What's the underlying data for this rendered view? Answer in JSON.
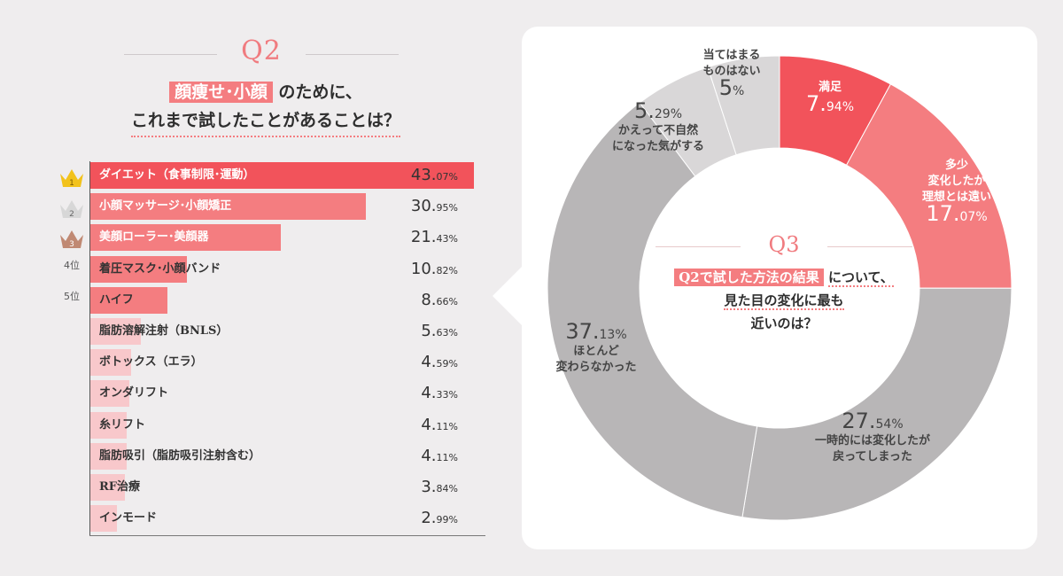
{
  "q2": {
    "label": "Q2",
    "title_highlight": "顔痩せ･小顔",
    "title_rest": "のために、",
    "title_line2": "これまで試したことがあることは？"
  },
  "q3": {
    "label": "Q3",
    "title_highlight": "Q2で試した方法の結果",
    "title_rest": "について、",
    "title_line2": "見た目の変化に最も",
    "title_line3": "近いのは？"
  },
  "ranks": [
    "1",
    "2",
    "3",
    "4位",
    "5位"
  ],
  "colors": {
    "accent": "#f2535b",
    "bar_strong": "#f2535b",
    "bar_mid": "#f47d80",
    "bar_light": "#f8c8cb",
    "pie_red": "#f2535b",
    "pie_pink": "#f47d80",
    "pie_gray": "#b8b6b7",
    "pie_lightgray": "#d9d7d8",
    "gold": "#f2c21b",
    "silver": "#d7d7d7",
    "bronze": "#c08973"
  },
  "chart_data": [
    {
      "type": "bar",
      "orientation": "horizontal",
      "categories": [
        "ダイエット（食事制限･運動）",
        "小顔マッサージ･小顔矯正",
        "美顔ローラー･美顔器",
        "着圧マスク･小顔バンド",
        "ハイフ",
        "脂肪溶解注射（BNLS）",
        "ボトックス（エラ）",
        "オンダリフト",
        "糸リフト",
        "脂肪吸引（脂肪吸引注射含む）",
        "RF治療",
        "インモード"
      ],
      "values": [
        43.07,
        30.95,
        21.43,
        10.82,
        8.66,
        5.63,
        4.59,
        4.33,
        4.11,
        4.11,
        3.84,
        2.99
      ],
      "unit": "%",
      "xlim": [
        0,
        43.07
      ]
    },
    {
      "type": "pie",
      "style": "donut",
      "unit": "%",
      "slices": [
        {
          "label": "満足",
          "value": 7.94
        },
        {
          "label": "多少変化したが理想とは遠い",
          "value": 17.07
        },
        {
          "label": "一時的には変化したが戻ってしまった",
          "value": 27.54
        },
        {
          "label": "ほとんど変わらなかった",
          "value": 37.13
        },
        {
          "label": "かえって不自然になった気がする",
          "value": 5.29
        },
        {
          "label": "当てはまるものはない",
          "value": 5
        }
      ]
    }
  ]
}
